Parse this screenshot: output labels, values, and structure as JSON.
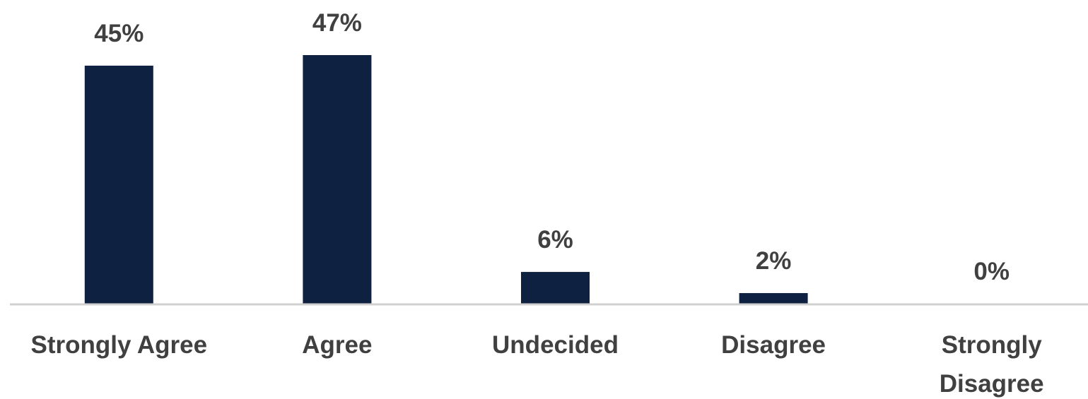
{
  "chart_data": {
    "type": "bar",
    "title": "",
    "xlabel": "",
    "ylabel": "",
    "categories": [
      "Strongly Agree",
      "Agree",
      "Undecided",
      "Disagree",
      "Strongly Disagree"
    ],
    "category_lines": [
      [
        "Strongly Agree"
      ],
      [
        "Agree"
      ],
      [
        "Undecided"
      ],
      [
        "Disagree"
      ],
      [
        "Strongly",
        "Disagree"
      ]
    ],
    "values": [
      45,
      47,
      6,
      2,
      0
    ],
    "value_labels": [
      "45%",
      "47%",
      "6%",
      "2%",
      "0%"
    ],
    "ylim": [
      0,
      50
    ],
    "grid": false,
    "legend": "none",
    "bar_color": "#0f2140",
    "axis_color": "#d0d0d0",
    "label_color": "#404040"
  }
}
